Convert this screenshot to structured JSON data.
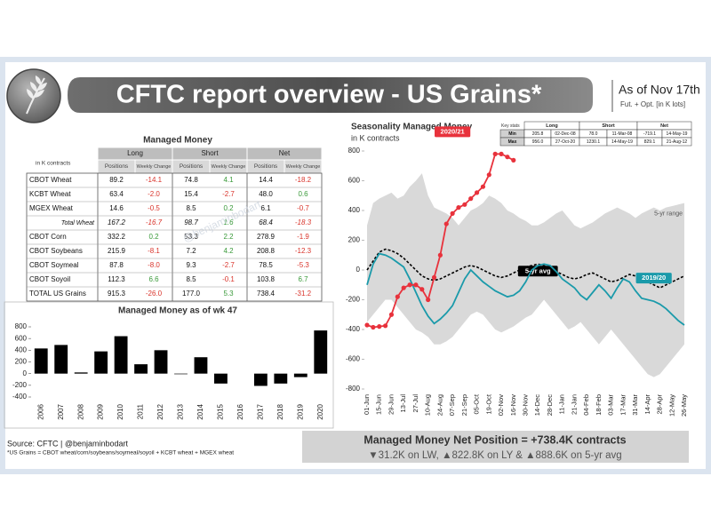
{
  "header": {
    "title": "CFTC report overview - US Grains*",
    "as_of": "As of Nov 17th",
    "subtitle": "Fut. + Opt. [in K lots]"
  },
  "watermark": "@benjaminbodart",
  "table": {
    "title": "Managed Money",
    "unit": "in K contracts",
    "groups": [
      "Long",
      "Short",
      "Net"
    ],
    "subheaders": [
      "Positions",
      "Weekly Change",
      "Positions",
      "Weekly Change",
      "Positions",
      "Weekly Change"
    ],
    "rows": [
      [
        "CBOT Wheat",
        "89.2",
        "-14.1",
        "74.8",
        "4.1",
        "14.4",
        "-18.2"
      ],
      [
        "KCBT Wheat",
        "63.4",
        "-2.0",
        "15.4",
        "-2.7",
        "48.0",
        "0.6"
      ],
      [
        "MGEX Wheat",
        "14.6",
        "-0.5",
        "8.5",
        "0.2",
        "6.1",
        "-0.7"
      ],
      [
        "Total Wheat",
        "167.2",
        "-16.7",
        "98.7",
        "1.6",
        "68.4",
        "-18.3"
      ],
      [
        "CBOT Corn",
        "332.2",
        "0.2",
        "53.3",
        "2.2",
        "278.9",
        "-1.9"
      ],
      [
        "CBOT Soybeans",
        "215.9",
        "-8.1",
        "7.2",
        "4.2",
        "208.8",
        "-12.3"
      ],
      [
        "CBOT Soymeal",
        "87.8",
        "-8.0",
        "9.3",
        "-2.7",
        "78.5",
        "-5.3"
      ],
      [
        "CBOT Soyoil",
        "112.3",
        "6.6",
        "8.5",
        "-0.1",
        "103.8",
        "6.7"
      ],
      [
        "TOTAL US Grains",
        "915.3",
        "-26.0",
        "177.0",
        "5.3",
        "738.4",
        "-31.2"
      ]
    ]
  },
  "key_stats": {
    "label": "Key stats",
    "columns": [
      "Long",
      "Short",
      "Net"
    ],
    "rows": [
      [
        "Min",
        "205.8",
        "02-Dec-08",
        "78.0",
        "11-Mar-08",
        "-719.1",
        "14-May-19"
      ],
      [
        "Max",
        "956.0",
        "27-Oct-20",
        "1230.1",
        "14-May-19",
        "829.1",
        "21-Aug-12"
      ]
    ]
  },
  "chart_data": [
    {
      "type": "bar",
      "title": "Managed Money as of wk 47",
      "categories": [
        "2006",
        "2007",
        "2008",
        "2009",
        "2010",
        "2011",
        "2012",
        "2013",
        "2014",
        "2015",
        "2016",
        "2017",
        "2018",
        "2019",
        "2020"
      ],
      "values": [
        430,
        490,
        20,
        380,
        640,
        160,
        400,
        -10,
        280,
        -170,
        0,
        -210,
        -170,
        -60,
        738
      ],
      "color": "#000000",
      "ylim": [
        -400,
        800
      ],
      "yticks": [
        -400,
        -200,
        0,
        200,
        400,
        600,
        800
      ]
    },
    {
      "type": "line",
      "title": "Seasonality Managed Money",
      "subtitle": "in K contracts",
      "categories": [
        "01-Jun",
        null,
        "15-Jun",
        null,
        "29-Jun",
        null,
        "13-Jul",
        null,
        "27-Jul",
        null,
        "10-Aug",
        null,
        "24-Aug",
        null,
        "07-Sep",
        null,
        "21-Sep",
        null,
        "05-Oct",
        null,
        "19-Oct",
        null,
        "02-Nov",
        null,
        "16-Nov",
        null,
        "30-Nov",
        null,
        "14-Dec",
        null,
        "28-Dec",
        null,
        "11-Jan",
        null,
        "21-Jan",
        null,
        "04-Feb",
        null,
        "18-Feb",
        null,
        "03-Mar",
        null,
        "17-Mar",
        null,
        "31-Mar",
        null,
        "14-Apr",
        null,
        "28-Apr",
        null,
        "12-May",
        null,
        "26-May"
      ],
      "ylim": [
        -800,
        800
      ],
      "yticks": [
        -800,
        -600,
        -400,
        -200,
        0,
        200,
        400,
        600,
        800
      ],
      "range": {
        "name": "5-yr range",
        "color": "#d9d9d9",
        "high": [
          300,
          450,
          480,
          500,
          520,
          480,
          500,
          560,
          600,
          650,
          500,
          420,
          400,
          380,
          350,
          300,
          350,
          400,
          420,
          450,
          500,
          480,
          450,
          400,
          380,
          350,
          330,
          300,
          300,
          320,
          350,
          380,
          400,
          350,
          300,
          280,
          300,
          320,
          350,
          380,
          400,
          420,
          400,
          380,
          350,
          380,
          400,
          420,
          400,
          420,
          430,
          440,
          450
        ],
        "low": [
          -350,
          -300,
          -250,
          -200,
          -200,
          -250,
          -300,
          -350,
          -400,
          -420,
          -450,
          -500,
          -500,
          -480,
          -450,
          -400,
          -350,
          -300,
          -280,
          -300,
          -350,
          -400,
          -420,
          -400,
          -380,
          -350,
          -320,
          -300,
          -250,
          -200,
          -250,
          -300,
          -350,
          -400,
          -380,
          -350,
          -400,
          -450,
          -500,
          -450,
          -400,
          -450,
          -500,
          -550,
          -600,
          -650,
          -700,
          -720,
          -700,
          -650,
          -600,
          -550,
          -500
        ]
      },
      "series": [
        {
          "name": "5-yr avg",
          "color": "#000000",
          "style": "dotted",
          "values": [
            0,
            60,
            120,
            140,
            130,
            110,
            80,
            40,
            0,
            -40,
            -60,
            -70,
            -60,
            -40,
            -20,
            0,
            20,
            30,
            20,
            0,
            -20,
            -40,
            -50,
            -40,
            -20,
            0,
            20,
            30,
            40,
            30,
            10,
            -10,
            -30,
            -50,
            -60,
            -50,
            -30,
            -20,
            -40,
            -60,
            -80,
            -70,
            -50,
            -30,
            -40,
            -60,
            -80,
            -100,
            -120,
            -100,
            -80,
            -60,
            -40
          ]
        },
        {
          "name": "2019/20",
          "color": "#1a9aaa",
          "style": "solid",
          "values": [
            -100,
            40,
            110,
            100,
            80,
            50,
            20,
            -60,
            -150,
            -240,
            -310,
            -360,
            -330,
            -290,
            -240,
            -150,
            -60,
            0,
            -40,
            -80,
            -110,
            -140,
            -160,
            -180,
            -170,
            -140,
            -80,
            0,
            30,
            40,
            30,
            -10,
            -60,
            -90,
            -120,
            -170,
            -200,
            -150,
            -100,
            -140,
            -190,
            -120,
            -60,
            -80,
            -140,
            -190,
            -200,
            -210,
            -230,
            -260,
            -300,
            -340,
            -370
          ]
        },
        {
          "name": "2020/21",
          "color": "#e8323c",
          "style": "solid",
          "markers": true,
          "values": [
            -370,
            -385,
            -380,
            -375,
            -300,
            -180,
            -120,
            -100,
            -100,
            -130,
            -200,
            -50,
            100,
            310,
            380,
            420,
            440,
            480,
            520,
            560,
            640,
            780,
            780,
            760,
            738,
            null,
            null,
            null,
            null,
            null,
            null,
            null,
            null,
            null,
            null,
            null,
            null,
            null,
            null,
            null,
            null,
            null,
            null,
            null,
            null,
            null,
            null,
            null,
            null,
            null,
            null,
            null,
            null
          ]
        }
      ]
    }
  ],
  "summary": {
    "headline": "Managed Money Net Position = +738.4K contracts",
    "detail": "▼31.2K on LW, ▲822.8K on LY & ▲888.6K on 5-yr avg"
  },
  "footer": {
    "source": "Source: CFTC | @benjaminbodart",
    "note": "*US Grains = CBOT wheat/corn/soybeans/soymeal/soyoil + KCBT wheat + MGEX wheat"
  }
}
